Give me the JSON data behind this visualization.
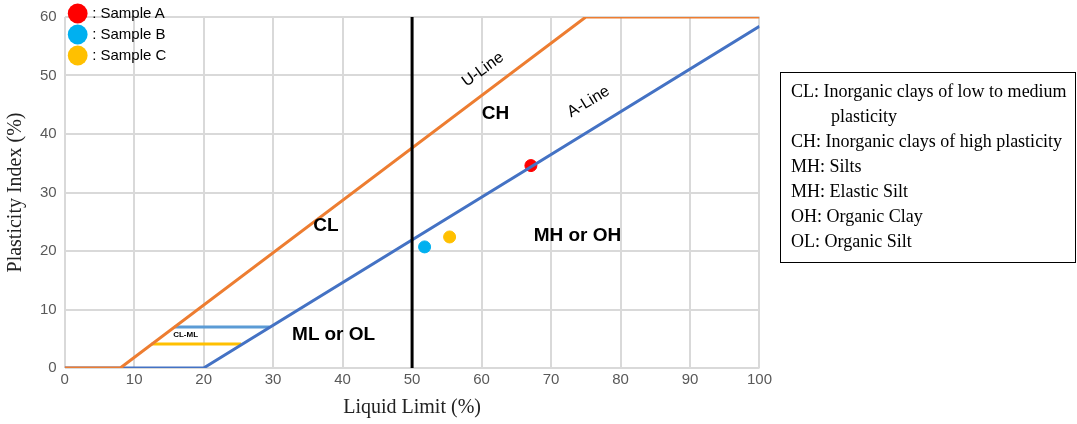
{
  "chart_data": {
    "type": "line",
    "xlabel": "Liquid Limit (%)",
    "ylabel": "Plasticity Index (%)",
    "xlim": [
      0,
      100
    ],
    "xticks": [
      0,
      10,
      20,
      30,
      40,
      50,
      60,
      70,
      80,
      90,
      100
    ],
    "ylim": [
      0,
      60
    ],
    "yticks": [
      0,
      10,
      20,
      30,
      40,
      50,
      60
    ],
    "grid": true,
    "legend": "top left",
    "marker": "none",
    "line_style": "solid",
    "series": [
      {
        "type": "line",
        "color": "#ed7d31",
        "x": [
          0,
          8,
          75,
          100
        ],
        "values": [
          0,
          0,
          60,
          60
        ]
      },
      {
        "type": "line",
        "color": "#4472c4",
        "x": [
          0,
          20,
          100
        ],
        "values": [
          0,
          0,
          58.4
        ]
      },
      {
        "type": "line",
        "color": "#5b9bd5",
        "x": [
          15.8,
          29.5
        ],
        "values": [
          7,
          7
        ]
      },
      {
        "type": "line",
        "color": "#ffc000",
        "x": [
          12.5,
          25.4
        ],
        "values": [
          4.1,
          4.1
        ]
      },
      {
        "type": "scatter",
        "name": ": Sample A",
        "color": "#ff0000",
        "marker": "circle",
        "x": [
          67.1
        ],
        "values": [
          34.6
        ]
      },
      {
        "type": "scatter",
        "name": ": Sample B",
        "color": "#00b0f0",
        "marker": "circle",
        "x": [
          51.8
        ],
        "values": [
          20.7
        ]
      },
      {
        "type": "scatter",
        "name": ": Sample C",
        "color": "#ffc000",
        "marker": "circle",
        "x": [
          55.4
        ],
        "values": [
          22.4
        ]
      }
    ],
    "ref_lines": [
      {
        "axis": "x",
        "value": 50,
        "color": "#000000",
        "line_style": "solid"
      }
    ],
    "annotations": [
      "U-Line",
      "A-Line",
      "CH",
      "CL",
      "MH or OH",
      "ML or OL",
      "CL-ML",
      "CL: Inorganic clays of low to medium plasticity",
      "CH: Inorganic clays of high plasticity",
      "MH: Silts",
      "MH: Elastic Silt",
      "OH: Organic Clay",
      "OL: Organic Silt"
    ]
  }
}
